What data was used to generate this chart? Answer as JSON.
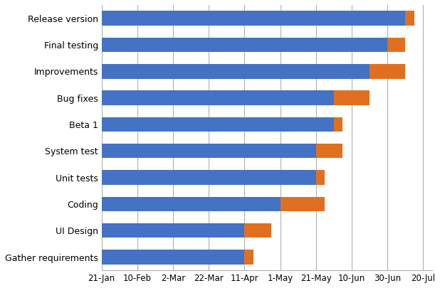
{
  "tasks": [
    "Gather requirements",
    "UI Design",
    "Coding",
    "Unit tests",
    "System test",
    "Beta 1",
    "Bug fixes",
    "Improvements",
    "Final testing",
    "Release version"
  ],
  "blue_duration": [
    80,
    80,
    100,
    120,
    120,
    130,
    130,
    150,
    160,
    170
  ],
  "orange_duration": [
    5,
    15,
    25,
    5,
    15,
    5,
    20,
    20,
    10,
    5
  ],
  "x_ticks": [
    0,
    20,
    40,
    60,
    80,
    100,
    120,
    140,
    160,
    180
  ],
  "x_tick_labels": [
    "21-Jan",
    "10-Feb",
    "2-Mar",
    "22-Mar",
    "11-Apr",
    "1-May",
    "21-May",
    "10-Jun",
    "30-Jun",
    "20-Jul"
  ],
  "xlim": [
    0,
    185
  ],
  "blue_color": "#4472C4",
  "orange_color": "#E07020",
  "bar_height": 0.55,
  "background_color": "#FFFFFF",
  "grid_color": "#B0B0B0"
}
